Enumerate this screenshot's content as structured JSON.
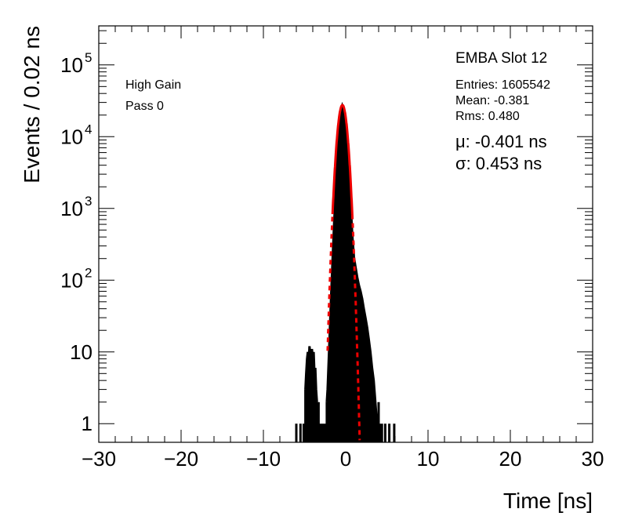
{
  "chart_data": {
    "type": "histogram",
    "title": "",
    "xlabel": "Time [ns]",
    "ylabel": "Events / 0.02 ns",
    "xlim": [
      -30,
      30
    ],
    "ylim": [
      0.55,
      350000
    ],
    "ylog": true,
    "grid": false,
    "x_ticks": [
      -30,
      -20,
      -10,
      0,
      10,
      20,
      30
    ],
    "x_tick_labels": [
      "−30",
      "−20",
      "−10",
      "0",
      "10",
      "20",
      "30"
    ],
    "y_ticks": [
      1,
      10,
      100,
      1000,
      10000,
      100000
    ],
    "y_tick_labels": [
      {
        "base": "1",
        "exp": ""
      },
      {
        "base": "10",
        "exp": ""
      },
      {
        "base": "10",
        "exp": "2"
      },
      {
        "base": "10",
        "exp": "3"
      },
      {
        "base": "10",
        "exp": "4"
      },
      {
        "base": "10",
        "exp": "5"
      }
    ],
    "annotations": {
      "label": "EMBA Slot 12",
      "gain": "High Gain",
      "pass": "Pass 0",
      "entries": "Entries: 1605542",
      "mean": "Mean: -0.381",
      "rms": "Rms: 0.480",
      "mu": "μ: -0.401 ns",
      "sigma": "σ: 0.453 ns"
    },
    "series": [
      {
        "kind": "histogram",
        "color": "#000000",
        "points": [
          [
            -6.0,
            1
          ],
          [
            -5.7,
            0
          ],
          [
            -5.5,
            1
          ],
          [
            -5.3,
            0
          ],
          [
            -5.1,
            1
          ],
          [
            -4.9,
            3
          ],
          [
            -4.8,
            5
          ],
          [
            -4.7,
            8
          ],
          [
            -4.6,
            10
          ],
          [
            -4.5,
            7
          ],
          [
            -4.4,
            12
          ],
          [
            -4.3,
            9
          ],
          [
            -4.2,
            6
          ],
          [
            -4.1,
            11
          ],
          [
            -4.0,
            8
          ],
          [
            -3.9,
            10
          ],
          [
            -3.8,
            5
          ],
          [
            -3.7,
            6
          ],
          [
            -3.6,
            3
          ],
          [
            -3.5,
            2
          ],
          [
            -3.4,
            1
          ],
          [
            -3.3,
            2
          ],
          [
            -3.2,
            1
          ],
          [
            -3.1,
            0
          ],
          [
            -3.0,
            1
          ],
          [
            -2.9,
            0
          ],
          [
            -2.8,
            1
          ],
          [
            -2.7,
            0
          ],
          [
            -2.6,
            1
          ],
          [
            -2.5,
            0
          ],
          [
            -2.4,
            1
          ],
          [
            -2.3,
            2
          ],
          [
            -2.2,
            3
          ],
          [
            -2.0,
            12
          ],
          [
            -1.8,
            50
          ],
          [
            -1.6,
            190
          ],
          [
            -1.4,
            650
          ],
          [
            -1.2,
            1900
          ],
          [
            -1.0,
            5200
          ],
          [
            -0.8,
            11500
          ],
          [
            -0.6,
            20500
          ],
          [
            -0.4,
            27000
          ],
          [
            -0.2,
            24000
          ],
          [
            0.0,
            16000
          ],
          [
            0.2,
            8200
          ],
          [
            0.4,
            3300
          ],
          [
            0.6,
            1150
          ],
          [
            0.8,
            420
          ],
          [
            1.0,
            210
          ],
          [
            1.2,
            150
          ],
          [
            1.4,
            110
          ],
          [
            1.6,
            85
          ],
          [
            1.8,
            70
          ],
          [
            2.0,
            55
          ],
          [
            2.2,
            40
          ],
          [
            2.4,
            30
          ],
          [
            2.6,
            22
          ],
          [
            2.8,
            15
          ],
          [
            3.0,
            10
          ],
          [
            3.2,
            6
          ],
          [
            3.4,
            4
          ],
          [
            3.6,
            2
          ],
          [
            3.8,
            1
          ],
          [
            4.0,
            2
          ],
          [
            4.2,
            1
          ],
          [
            4.4,
            1
          ],
          [
            4.6,
            0
          ],
          [
            4.8,
            1
          ],
          [
            5.0,
            0
          ],
          [
            5.3,
            1
          ],
          [
            5.6,
            0
          ],
          [
            5.9,
            1
          ]
        ]
      },
      {
        "kind": "gaussian-fit",
        "color": "#ee0000",
        "amplitude": 27600,
        "mean": -0.401,
        "sigma": 0.453,
        "x_range": [
          -2.2,
          1.7
        ]
      }
    ]
  }
}
